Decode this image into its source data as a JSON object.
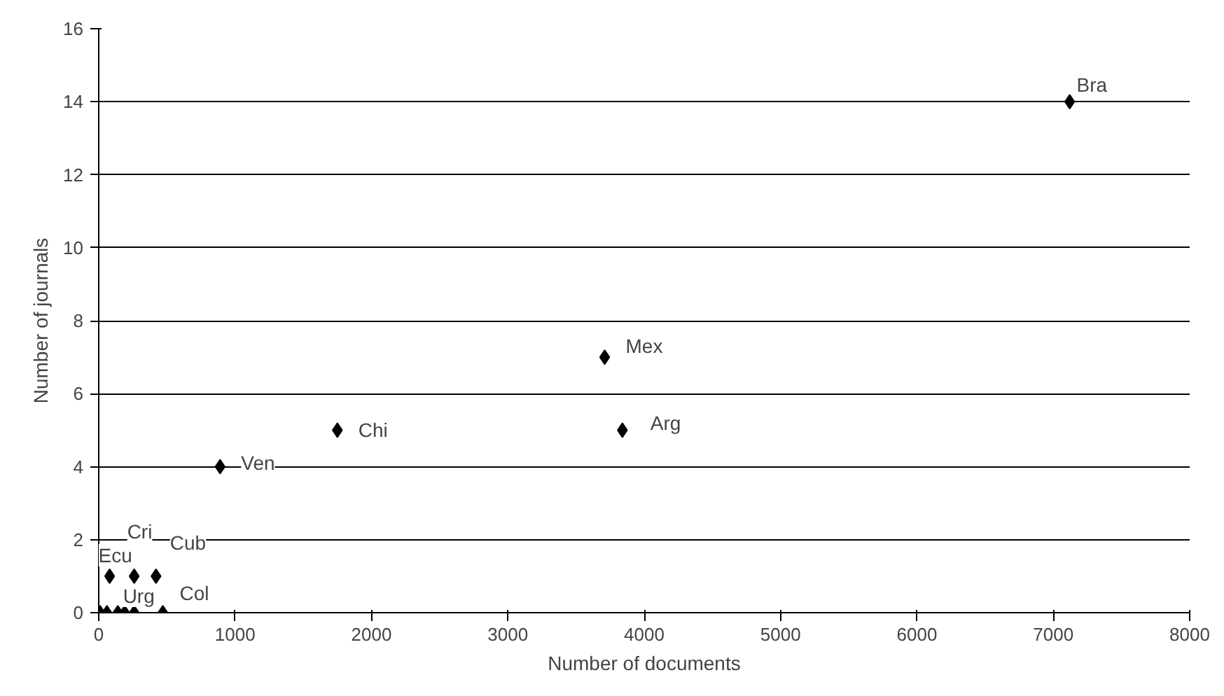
{
  "chart_data": {
    "type": "scatter",
    "xlabel": "Number of documents",
    "ylabel": "Number of journals",
    "x": [
      7120,
      3710,
      3840,
      1750,
      890,
      80,
      260,
      420,
      10,
      60,
      140,
      190,
      260,
      470
    ],
    "series": [
      {
        "color": "#000000",
        "values": [
          14,
          7,
          5,
          5,
          4,
          1,
          1,
          1,
          0,
          0,
          0,
          0,
          0,
          0
        ]
      }
    ],
    "marker": "diamond",
    "xlim": [
      0,
      8000
    ],
    "ylim": [
      0,
      16
    ],
    "xticks": [
      0,
      1000,
      2000,
      3000,
      4000,
      5000,
      6000,
      7000,
      8000
    ],
    "yticks": [
      0,
      2,
      4,
      6,
      8,
      10,
      12,
      14,
      16
    ],
    "grid": "y",
    "annotations": [
      {
        "text": "Bra",
        "x": 7120,
        "y": 14
      },
      {
        "text": "Mex",
        "x": 3710,
        "y": 7
      },
      {
        "text": "Arg",
        "x": 3840,
        "y": 5
      },
      {
        "text": "Chi",
        "x": 1750,
        "y": 5
      },
      {
        "text": "Ven",
        "x": 890,
        "y": 4
      },
      {
        "text": "Ecu",
        "x": 80,
        "y": 1
      },
      {
        "text": "Cri",
        "x": 260,
        "y": 1
      },
      {
        "text": "Cub",
        "x": 420,
        "y": 1
      },
      {
        "text": "Col",
        "x": 470,
        "y": 0
      },
      {
        "text": "Urg",
        "x": 260,
        "y": 0
      }
    ]
  }
}
